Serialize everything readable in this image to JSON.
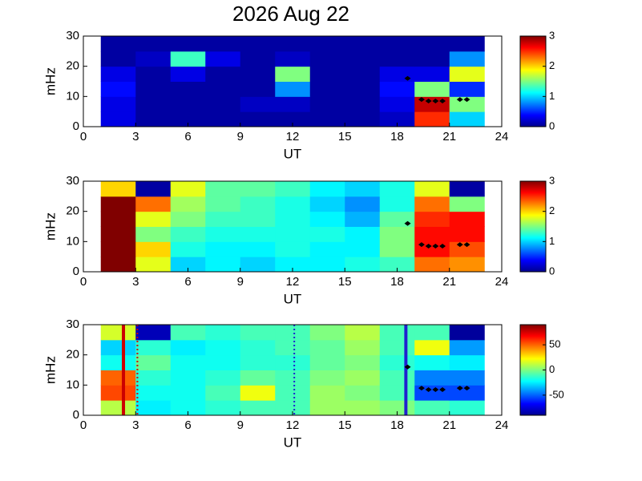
{
  "title": "2026 Aug 22",
  "chart_data": [
    {
      "type": "heatmap",
      "xlabel": "UT",
      "ylabel": "mHz",
      "x": [
        1,
        3,
        5,
        7,
        9,
        11,
        13,
        15,
        17,
        19,
        21,
        23
      ],
      "y": [
        0,
        5,
        10,
        15,
        20,
        25,
        30
      ],
      "z": [
        [
          0.3,
          0.1,
          0.1,
          0.1,
          0.1,
          0.1,
          0.1,
          0.1,
          0.2,
          2.5,
          1.0
        ],
        [
          0.3,
          0.1,
          0.1,
          0.1,
          0.2,
          0.2,
          0.1,
          0.1,
          0.3,
          2.8,
          1.5
        ],
        [
          0.4,
          0.1,
          0.1,
          0.1,
          0.1,
          0.8,
          0.1,
          0.1,
          0.4,
          1.5,
          0.5
        ],
        [
          0.3,
          0.1,
          0.3,
          0.1,
          0.1,
          1.5,
          0.1,
          0.1,
          0.3,
          0.3,
          1.8
        ],
        [
          0.1,
          0.2,
          1.3,
          0.3,
          0.1,
          0.2,
          0.1,
          0.1,
          0.1,
          0.1,
          0.8
        ],
        [
          0.1,
          0.1,
          0.1,
          0.1,
          0.1,
          0.1,
          0.1,
          0.1,
          0.1,
          0.1,
          0.1
        ]
      ],
      "xlim": [
        0,
        24
      ],
      "ylim": [
        0,
        30
      ],
      "xticks": [
        0,
        3,
        6,
        9,
        12,
        15,
        18,
        21,
        24
      ],
      "yticks": [
        0,
        10,
        20,
        30
      ],
      "clim": [
        0,
        3
      ],
      "cticks": [
        0,
        1,
        2,
        3
      ],
      "colormap": "jet",
      "markers": {
        "x": [
          18.6,
          19.4,
          19.8,
          20.2,
          20.6,
          21.6,
          22.0
        ],
        "y": [
          16,
          9,
          8.5,
          8.5,
          8.5,
          9,
          9
        ],
        "color": "#000000"
      }
    },
    {
      "type": "heatmap",
      "xlabel": "UT",
      "ylabel": "mHz",
      "x": [
        1,
        3,
        5,
        7,
        9,
        11,
        13,
        15,
        17,
        19,
        21,
        23
      ],
      "y": [
        0,
        5,
        10,
        15,
        20,
        25,
        30
      ],
      "z": [
        [
          3.0,
          1.8,
          1.0,
          1.1,
          1.0,
          1.1,
          1.1,
          1.2,
          1.3,
          2.3,
          2.2
        ],
        [
          3.0,
          2.0,
          1.2,
          1.1,
          1.1,
          1.2,
          1.1,
          1.1,
          1.5,
          2.6,
          2.4
        ],
        [
          3.0,
          1.5,
          1.3,
          1.2,
          1.2,
          1.2,
          1.2,
          1.1,
          1.5,
          2.6,
          2.6
        ],
        [
          3.0,
          1.8,
          1.5,
          1.3,
          1.3,
          1.2,
          1.1,
          0.9,
          1.4,
          2.5,
          2.6
        ],
        [
          3.0,
          2.3,
          1.6,
          1.4,
          1.3,
          1.2,
          1.0,
          0.8,
          1.2,
          2.3,
          1.5
        ],
        [
          2.0,
          0.1,
          1.8,
          1.4,
          1.4,
          1.3,
          1.1,
          1.0,
          1.2,
          1.8,
          0.1
        ]
      ],
      "xlim": [
        0,
        24
      ],
      "ylim": [
        0,
        30
      ],
      "xticks": [
        0,
        3,
        6,
        9,
        12,
        15,
        18,
        21,
        24
      ],
      "yticks": [
        0,
        10,
        20,
        30
      ],
      "clim": [
        0,
        3
      ],
      "cticks": [
        0,
        1,
        2,
        3
      ],
      "colormap": "jet",
      "markers": {
        "x": [
          18.6,
          19.4,
          19.8,
          20.2,
          20.6,
          21.6,
          22.0
        ],
        "y": [
          16,
          9,
          8.5,
          8.5,
          8.5,
          9,
          9
        ],
        "color": "#000000"
      }
    },
    {
      "type": "heatmap",
      "xlabel": "UT",
      "ylabel": "mHz",
      "x": [
        1,
        3,
        5,
        7,
        9,
        11,
        13,
        15,
        17,
        19,
        21,
        23
      ],
      "y": [
        0,
        5,
        10,
        15,
        20,
        25,
        30
      ],
      "z": [
        [
          10,
          -25,
          -20,
          -15,
          -10,
          -10,
          5,
          5,
          0,
          -10,
          -15
        ],
        [
          55,
          -20,
          -20,
          -10,
          20,
          -10,
          5,
          0,
          -10,
          -55,
          -55
        ],
        [
          50,
          -15,
          -20,
          -15,
          -5,
          -10,
          0,
          5,
          -10,
          -45,
          -45
        ],
        [
          -20,
          -5,
          -20,
          -20,
          -15,
          -15,
          -5,
          0,
          -15,
          -20,
          -25
        ],
        [
          -30,
          -15,
          -25,
          -20,
          -15,
          -10,
          -5,
          5,
          -10,
          20,
          -40
        ],
        [
          15,
          -80,
          -10,
          -15,
          -10,
          -10,
          0,
          10,
          -10,
          -10,
          -85
        ]
      ],
      "xlim": [
        0,
        24
      ],
      "ylim": [
        0,
        30
      ],
      "xticks": [
        0,
        3,
        6,
        9,
        12,
        15,
        18,
        21,
        24
      ],
      "yticks": [
        0,
        10,
        20,
        30
      ],
      "clim": [
        -90,
        90
      ],
      "cticks": [
        -50,
        0,
        50
      ],
      "colormap": "jet",
      "markers": {
        "x": [
          18.6,
          19.4,
          19.8,
          20.2,
          20.6,
          21.6,
          22.0
        ],
        "y": [
          16,
          9,
          8.5,
          8.5,
          8.5,
          9,
          9
        ],
        "color": "#000000"
      },
      "vlines": [
        {
          "x": 2.3,
          "color": "#cc0000",
          "style": "solid"
        },
        {
          "x": 3.1,
          "color": "#cc0000",
          "style": "dotted"
        },
        {
          "x": 12.1,
          "color": "#2020d0",
          "style": "dotted"
        },
        {
          "x": 18.5,
          "color": "#2020d0",
          "style": "solid"
        }
      ]
    }
  ]
}
